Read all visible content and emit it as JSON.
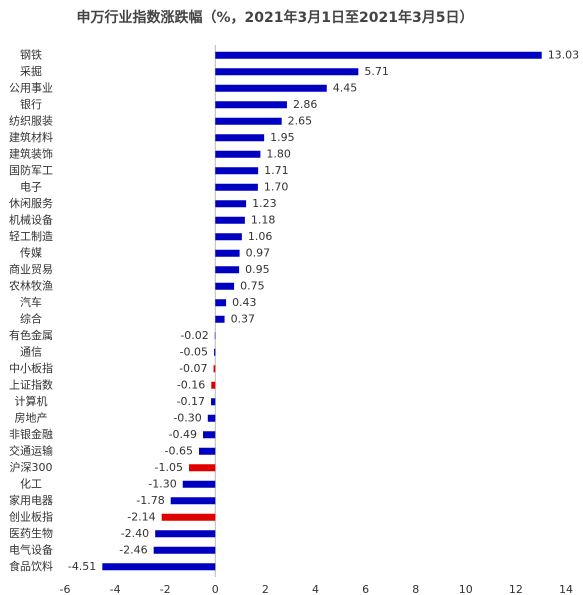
{
  "chart_data": {
    "type": "hbar",
    "title": "申万行业指数涨跌幅（%，2021年3月1日至2021年3月5日）",
    "categories": [
      "钢铁",
      "采掘",
      "公用事业",
      "银行",
      "纺织服装",
      "建筑材料",
      "建筑装饰",
      "国防军工",
      "电子",
      "休闲服务",
      "机械设备",
      "轻工制造",
      "传媒",
      "商业贸易",
      "农林牧渔",
      "汽车",
      "综合",
      "有色金属",
      "通信",
      "中小板指",
      "上证指数",
      "计算机",
      "房地产",
      "非银金融",
      "交通运输",
      "沪深300",
      "化工",
      "家用电器",
      "创业板指",
      "医药生物",
      "电气设备",
      "食品饮料"
    ],
    "values": [
      13.03,
      5.71,
      4.45,
      2.86,
      2.65,
      1.95,
      1.8,
      1.71,
      1.7,
      1.23,
      1.18,
      1.06,
      0.97,
      0.95,
      0.75,
      0.43,
      0.37,
      -0.02,
      -0.05,
      -0.07,
      -0.16,
      -0.17,
      -0.3,
      -0.49,
      -0.65,
      -1.05,
      -1.3,
      -1.78,
      -2.14,
      -2.4,
      -2.46,
      -4.51
    ],
    "value_labels": [
      "13.03",
      "5.71",
      "4.45",
      "2.86",
      "2.65",
      "1.95",
      "1.80",
      "1.71",
      "1.70",
      "1.23",
      "1.18",
      "1.06",
      "0.97",
      "0.95",
      "0.75",
      "0.43",
      "0.37",
      "-0.02",
      "-0.05",
      "-0.07",
      "-0.16",
      "-0.17",
      "-0.30",
      "-0.49",
      "-0.65",
      "-1.05",
      "-1.30",
      "-1.78",
      "-2.14",
      "-2.40",
      "-2.46",
      "-4.51"
    ],
    "colors": [
      "#0000c0",
      "#0000c0",
      "#0000c0",
      "#0000c0",
      "#0000c0",
      "#0000c0",
      "#0000c0",
      "#0000c0",
      "#0000c0",
      "#0000c0",
      "#0000c0",
      "#0000c0",
      "#0000c0",
      "#0000c0",
      "#0000c0",
      "#0000c0",
      "#0000c0",
      "#0000c0",
      "#0000c0",
      "#e00000",
      "#e00000",
      "#0000c0",
      "#0000c0",
      "#0000c0",
      "#0000c0",
      "#e00000",
      "#0000c0",
      "#0000c0",
      "#e00000",
      "#0000c0",
      "#0000c0",
      "#0000c0"
    ],
    "xlim": [
      -6,
      14
    ],
    "xticks": [
      -6,
      -4,
      -2,
      0,
      2,
      4,
      6,
      8,
      10,
      12,
      14
    ]
  }
}
